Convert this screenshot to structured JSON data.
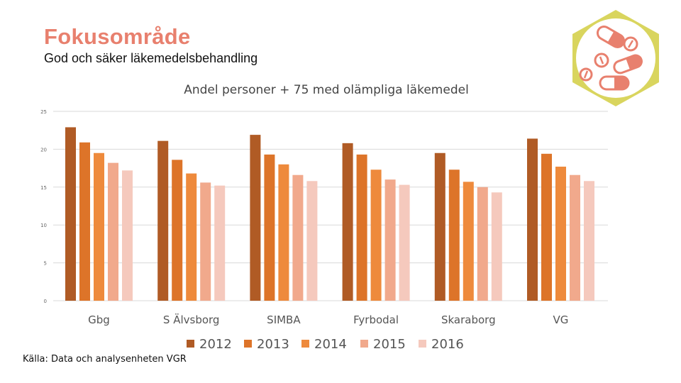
{
  "header": {
    "title": "Fokusområde",
    "subtitle": "God och säker läkemedelsbehandling"
  },
  "source": "Källa: Data och analysenheten VGR",
  "logo": {
    "icon": "pills-icon",
    "hex_color": "#d9d55e",
    "pill_color": "#e8806e"
  },
  "chart_data": {
    "type": "bar",
    "title": "Andel personer + 75 med olämpliga läkemedel",
    "xlabel": "",
    "ylabel": "",
    "ylim": [
      0,
      25
    ],
    "yticks": [
      0,
      5,
      10,
      15,
      20,
      25
    ],
    "grid": true,
    "legend": "bottom",
    "categories": [
      "Gbg",
      "S Älvsborg",
      "SIMBA",
      "Fyrbodal",
      "Skaraborg",
      "VG"
    ],
    "series": [
      {
        "name": "2012",
        "color": "#b05b25",
        "values": [
          22.9,
          21.1,
          21.9,
          20.8,
          19.5,
          21.4
        ]
      },
      {
        "name": "2013",
        "color": "#dd7429",
        "values": [
          20.9,
          18.6,
          19.3,
          19.3,
          17.3,
          19.4
        ]
      },
      {
        "name": "2014",
        "color": "#ee8a3c",
        "values": [
          19.5,
          16.8,
          18.0,
          17.3,
          15.7,
          17.7
        ]
      },
      {
        "name": "2015",
        "color": "#f1a98c",
        "values": [
          18.2,
          15.6,
          16.6,
          16.0,
          15.0,
          16.6
        ]
      },
      {
        "name": "2016",
        "color": "#f5c9bd",
        "values": [
          17.2,
          15.2,
          15.8,
          15.3,
          14.3,
          15.8
        ]
      }
    ]
  }
}
